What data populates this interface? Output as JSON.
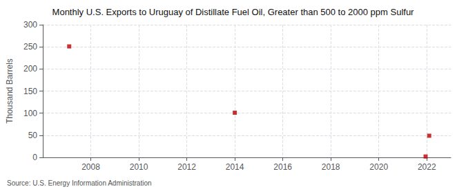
{
  "chart_data": {
    "type": "scatter",
    "title": "Monthly U.S. Exports to Uruguay of Distillate Fuel Oil, Greater than 500 to 2000 ppm Sulfur",
    "ylabel": "Thousand Barrels",
    "source": "Source: U.S. Energy Information Administration",
    "x": [
      2007.1,
      2014.0,
      2021.95,
      2022.1
    ],
    "values": [
      251,
      101,
      2,
      49
    ],
    "color": "#bb0000",
    "marker": "square",
    "xlim": [
      2006.0,
      2023.0
    ],
    "xticks": [
      2008,
      2010,
      2012,
      2014,
      2016,
      2018,
      2020,
      2022
    ],
    "ylim": [
      0,
      300
    ],
    "yticks": [
      0,
      50,
      100,
      150,
      200,
      250,
      300
    ],
    "grid": true
  }
}
